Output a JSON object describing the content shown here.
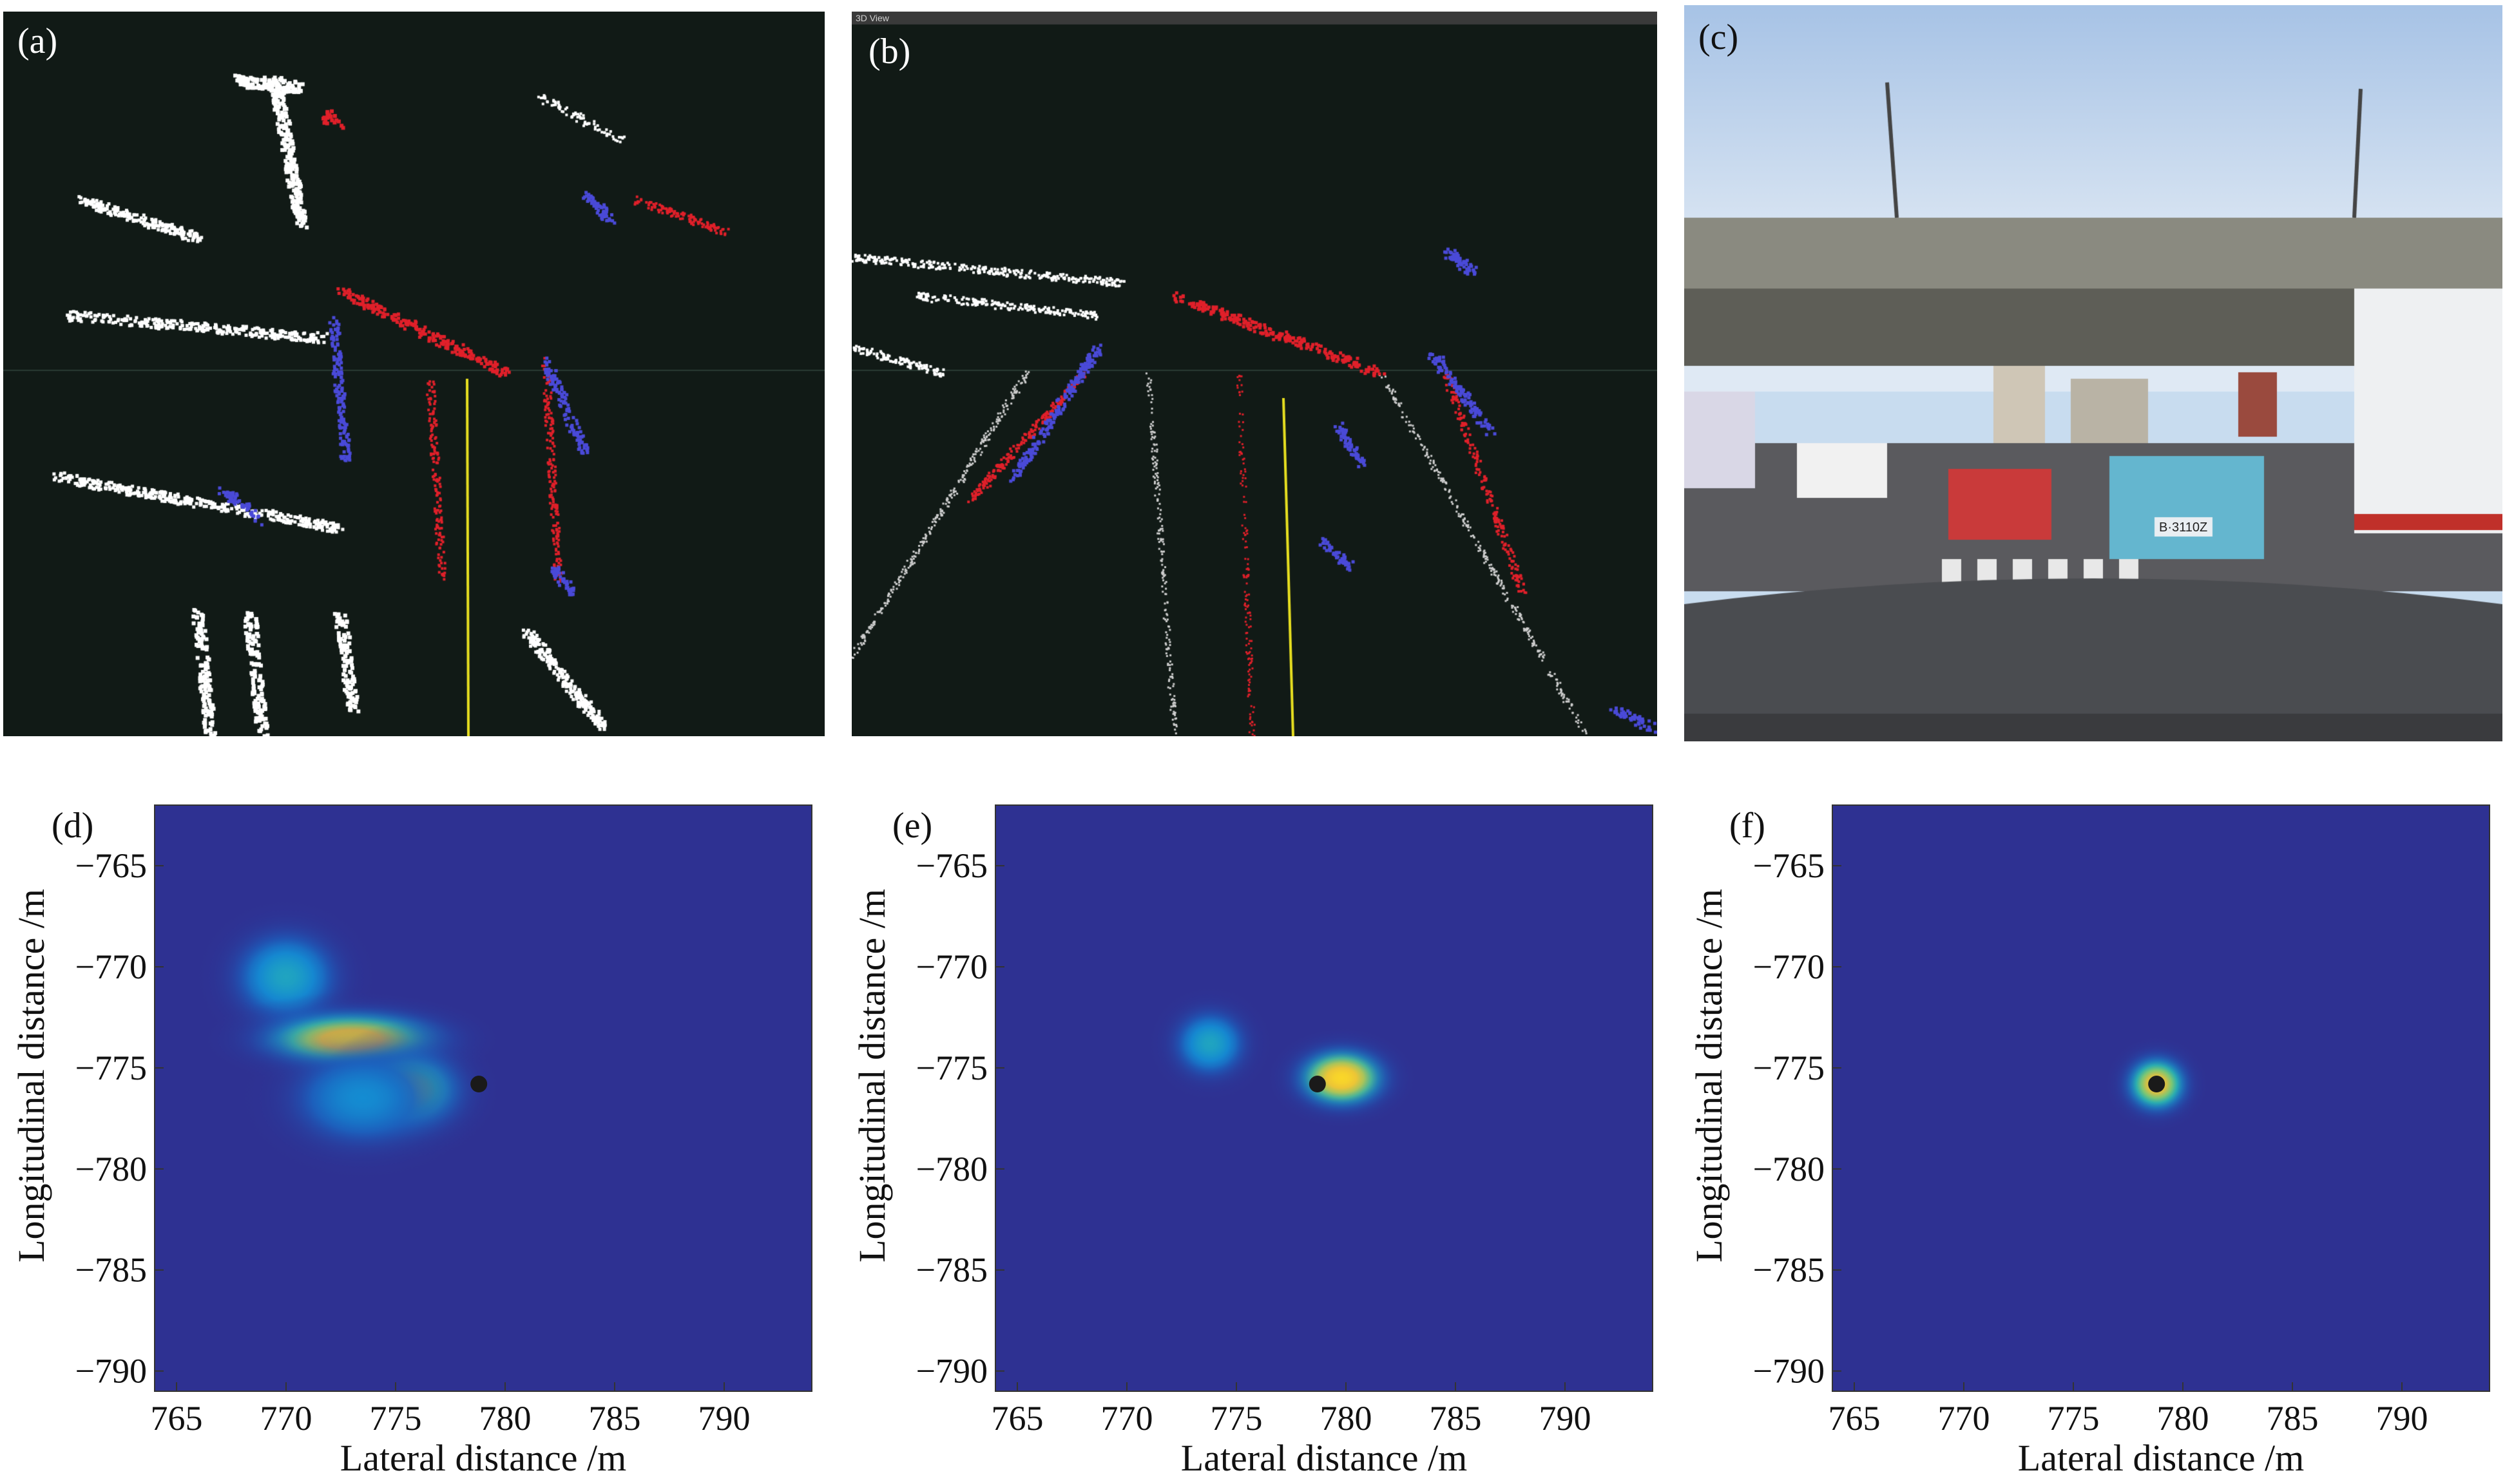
{
  "panels_top": [
    {
      "id": "a",
      "label": "(a)",
      "kind": "lidar-bev"
    },
    {
      "id": "b",
      "label": "(b)",
      "kind": "lidar-perspective",
      "window_title": "3D View"
    },
    {
      "id": "c",
      "label": "(c)",
      "kind": "camera",
      "plate_text": "B·3110Z"
    }
  ],
  "colors": {
    "background_dark": "#111a16",
    "points_static": "#ffffff",
    "points_dynamic": "#e0202a",
    "points_cluster": "#4a4ad8",
    "lane_line": "#e8e020",
    "heatmap_bg": "#2e3192",
    "target_dot": "#1a1a1a"
  },
  "chart_data": [
    {
      "type": "heatmap",
      "label": "(d)",
      "xlabel": "Lateral distance /m",
      "ylabel": "Longitudinal distance /m",
      "xlim": [
        764,
        794
      ],
      "ylim": [
        -791,
        -762
      ],
      "xticks": [
        765,
        770,
        775,
        780,
        785,
        790
      ],
      "yticks": [
        -765,
        -770,
        -775,
        -780,
        -785,
        -790
      ],
      "target": {
        "x": 778.8,
        "y": -775.8
      },
      "blobs": [
        {
          "x": 770,
          "y": -770.5,
          "sx": 1.6,
          "sy": 1.5,
          "peak": 0.45
        },
        {
          "x": 773,
          "y": -773.6,
          "sx": 2.6,
          "sy": 0.9,
          "peak": 0.95
        },
        {
          "x": 775.6,
          "y": -776.1,
          "sx": 1.6,
          "sy": 1.3,
          "peak": 0.7
        },
        {
          "x": 773.5,
          "y": -776.5,
          "sx": 2.2,
          "sy": 1.6,
          "peak": 0.35
        }
      ]
    },
    {
      "type": "heatmap",
      "label": "(e)",
      "xlabel": "Lateral distance /m",
      "ylabel": "Longitudinal distance /m",
      "xlim": [
        764,
        794
      ],
      "ylim": [
        -791,
        -762
      ],
      "xticks": [
        765,
        770,
        775,
        780,
        785,
        790
      ],
      "yticks": [
        -765,
        -770,
        -775,
        -780,
        -785,
        -790
      ],
      "target": {
        "x": 778.7,
        "y": -775.8
      },
      "blobs": [
        {
          "x": 773.8,
          "y": -773.8,
          "sx": 1.1,
          "sy": 1.1,
          "peak": 0.45
        },
        {
          "x": 779.8,
          "y": -775.5,
          "sx": 1.3,
          "sy": 0.95,
          "peak": 1.0
        }
      ]
    },
    {
      "type": "heatmap",
      "label": "(f)",
      "xlabel": "Lateral distance /m",
      "ylabel": "Longitudinal distance /m",
      "xlim": [
        764,
        794
      ],
      "ylim": [
        -791,
        -762
      ],
      "xticks": [
        765,
        770,
        775,
        780,
        785,
        790
      ],
      "yticks": [
        -765,
        -770,
        -775,
        -780,
        -785,
        -790
      ],
      "target": {
        "x": 778.8,
        "y": -775.8
      },
      "blobs": [
        {
          "x": 778.8,
          "y": -775.8,
          "sx": 0.9,
          "sy": 0.9,
          "peak": 0.9
        }
      ]
    }
  ]
}
